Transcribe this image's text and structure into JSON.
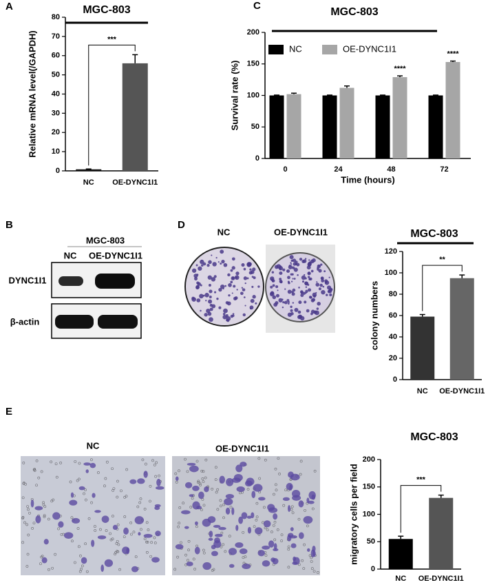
{
  "panel_letters": [
    "A",
    "B",
    "C",
    "D",
    "E"
  ],
  "blot": {
    "title": "MGC-803",
    "lanes": [
      "NC",
      "OE-DYNC1I1"
    ],
    "rows": [
      "DYNC1I1",
      "β-actin"
    ]
  },
  "colony_images": {
    "labels": [
      "NC",
      "OE-DYNC1I1"
    ]
  },
  "migration_images": {
    "labels": [
      "NC",
      "OE-DYNC1I1"
    ]
  },
  "chart_data": [
    {
      "type": "bar",
      "title": "MGC-803",
      "y_label": "Relative mRNA level(/GAPDH)",
      "categories": [
        "NC",
        "OE-DYNC1I1"
      ],
      "values": [
        0.8,
        56
      ],
      "errors": [
        0.2,
        4.5
      ],
      "colors": [
        "#111111",
        "#555555"
      ],
      "significance": "***",
      "ylim": [
        0,
        80
      ],
      "yticks": [
        0,
        10,
        20,
        30,
        40,
        50,
        60,
        70,
        80
      ]
    },
    {
      "type": "bar",
      "title": "MGC-803",
      "y_label": "Survival rate (%)",
      "x_label": "Time (hours)",
      "categories": [
        "0",
        "24",
        "48",
        "72"
      ],
      "series": [
        {
          "name": "NC",
          "color": "#000000",
          "values": [
            100,
            100,
            100,
            100
          ],
          "errors": [
            0.5,
            0.5,
            0.5,
            0.5
          ]
        },
        {
          "name": "OE-DYNC1I1",
          "color": "#a6a6a6",
          "values": [
            102,
            112,
            129,
            153
          ],
          "errors": [
            1.5,
            3,
            2,
            1.5
          ]
        }
      ],
      "significance": [
        null,
        null,
        "****",
        "****"
      ],
      "legend": "upper left",
      "ylim": [
        0,
        200
      ],
      "yticks": [
        0,
        50,
        100,
        150,
        200
      ]
    },
    {
      "type": "bar",
      "title": "MGC-803",
      "y_label": "colony numbers",
      "categories": [
        "NC",
        "OE-DYNC1I1"
      ],
      "values": [
        59,
        95
      ],
      "errors": [
        2,
        3
      ],
      "colors": [
        "#333333",
        "#666666"
      ],
      "significance": "**",
      "ylim": [
        0,
        120
      ],
      "yticks": [
        0,
        20,
        40,
        60,
        80,
        100,
        120
      ]
    },
    {
      "type": "bar",
      "title": "MGC-803",
      "y_label": "migratory cells per field",
      "categories": [
        "NC",
        "OE-DYNC1I1"
      ],
      "values": [
        55,
        130
      ],
      "errors": [
        5,
        5
      ],
      "colors": [
        "#000000",
        "#555555"
      ],
      "significance": "***",
      "ylim": [
        0,
        200
      ],
      "yticks": [
        0,
        50,
        100,
        150,
        200
      ]
    }
  ]
}
